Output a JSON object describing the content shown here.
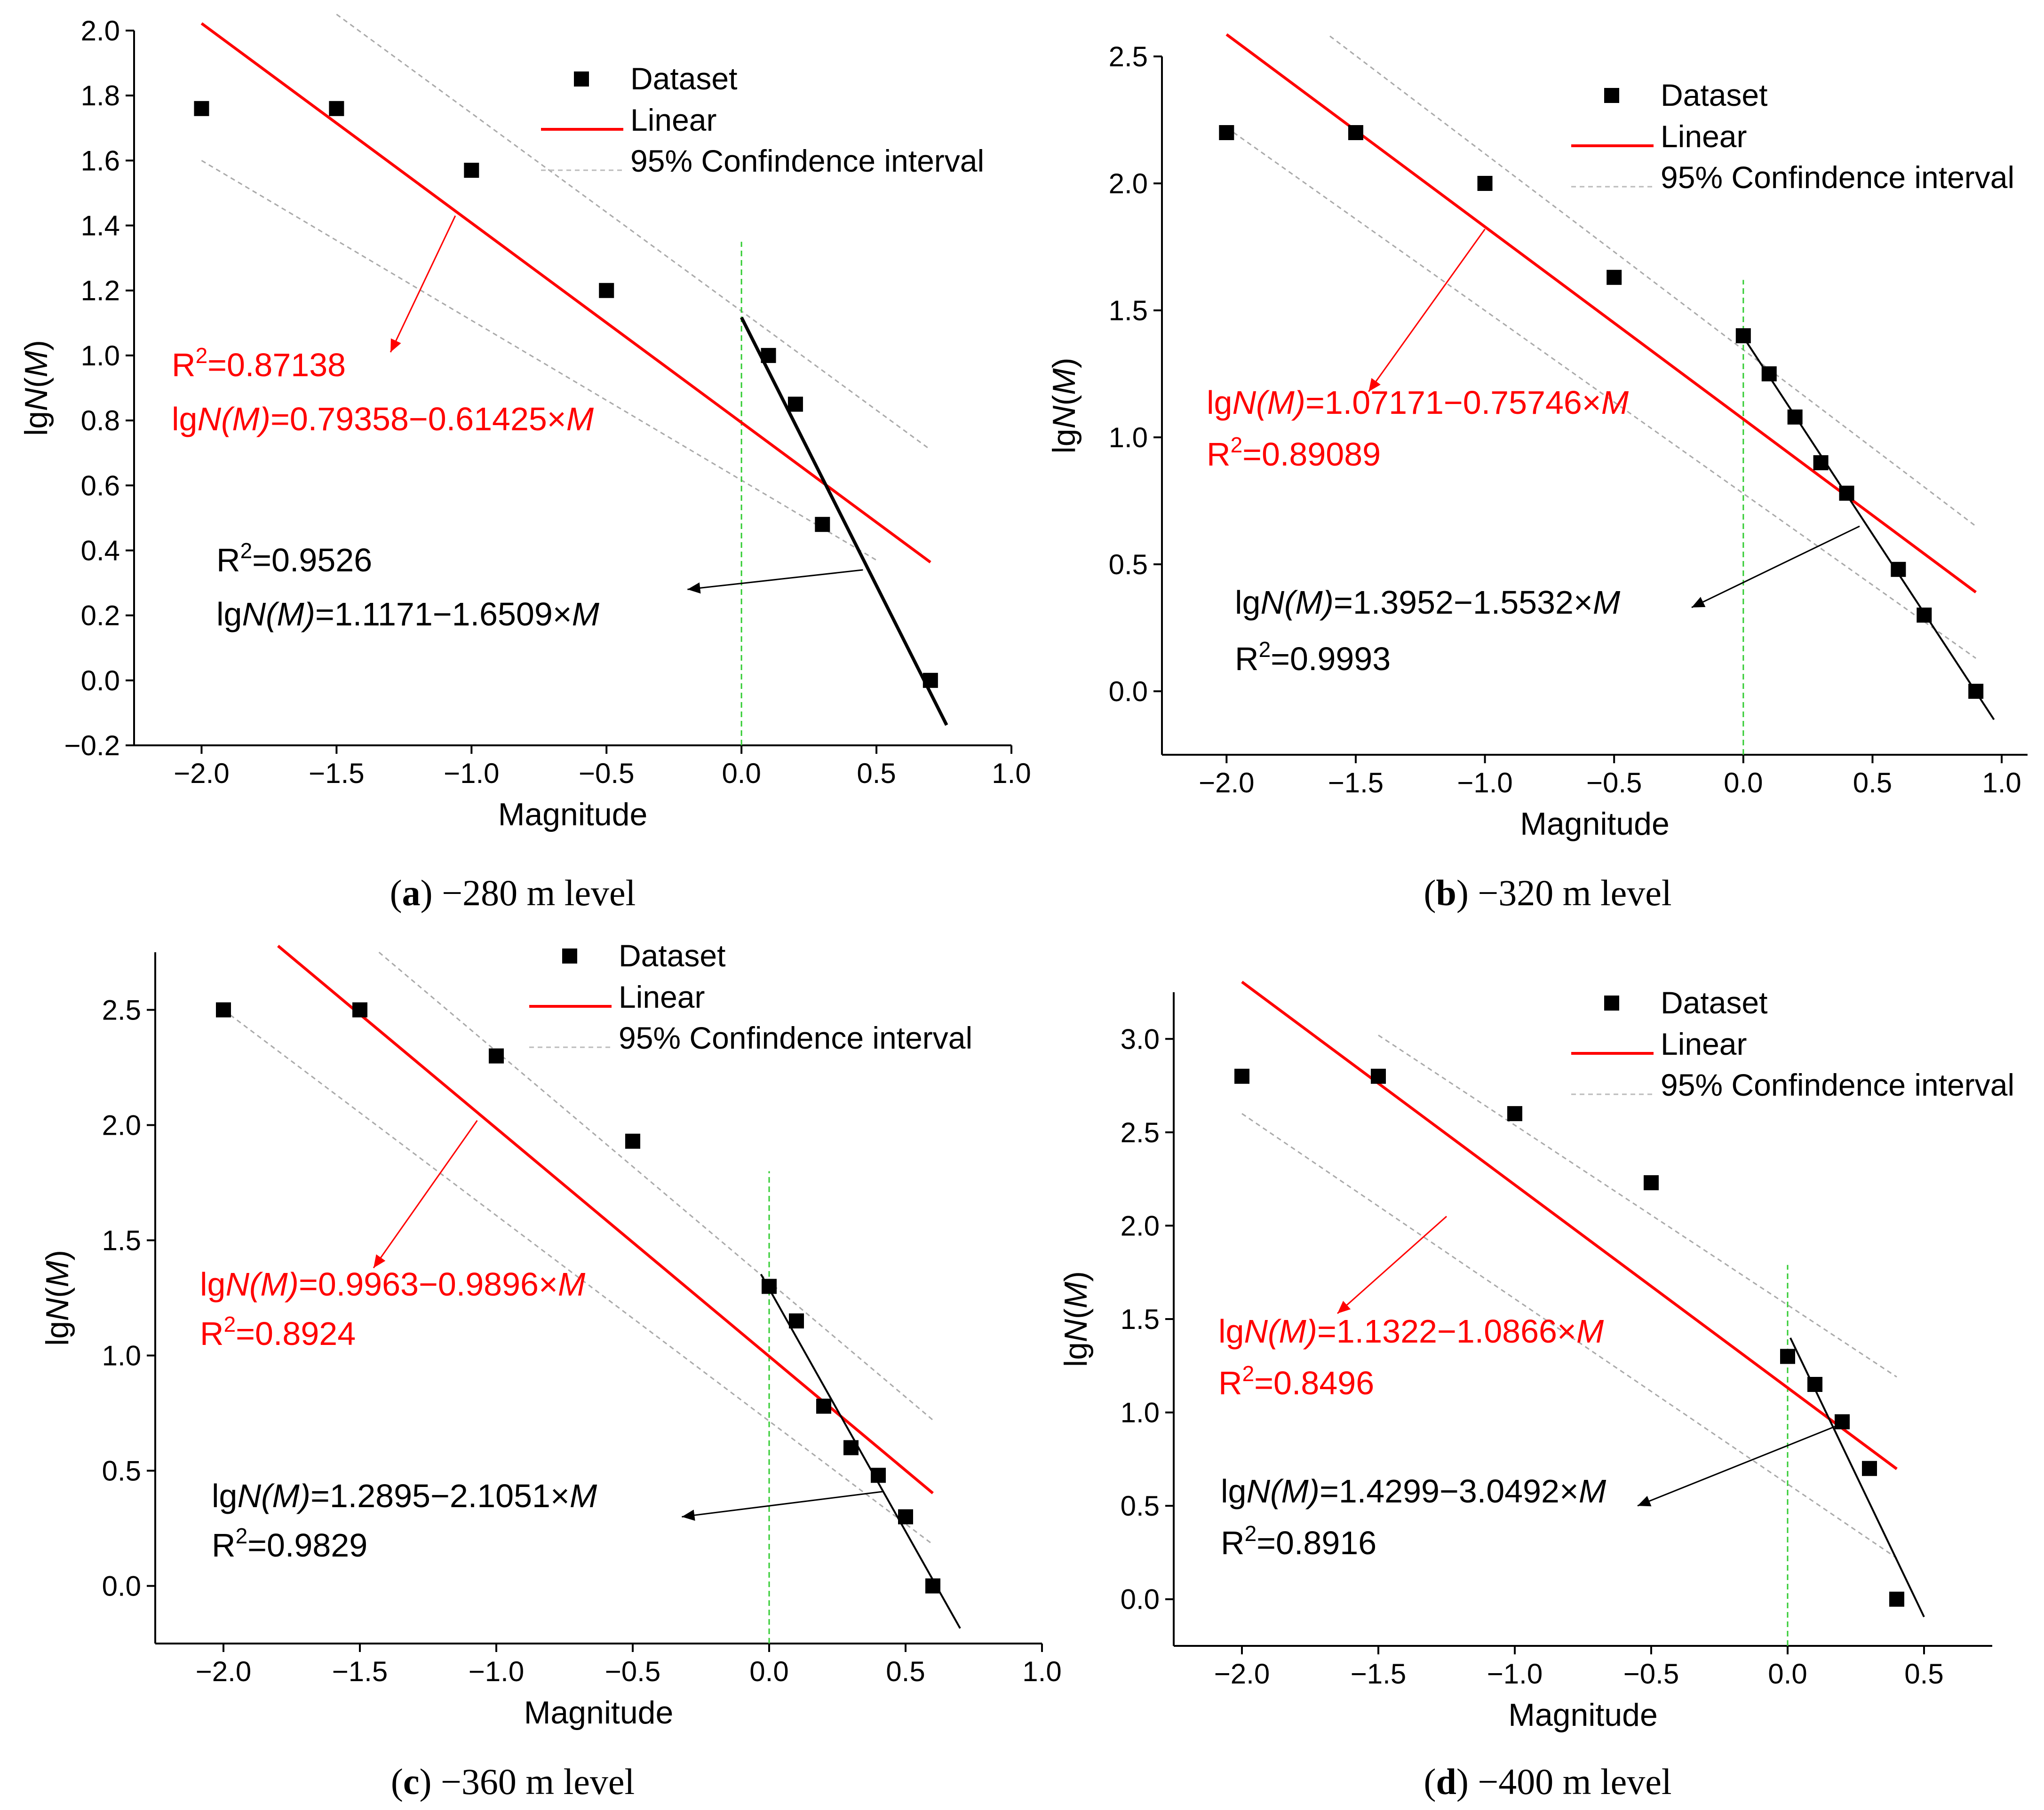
{
  "chart_data": [
    {
      "type": "scatter",
      "caption_letter": "a",
      "caption_rest": " −280 m level",
      "xlabel": "Magnitude",
      "ylabel_prefix": "lg",
      "ylabel_italic": "N",
      "ylabel_paren_open": "(",
      "ylabel_paren_var": "M",
      "ylabel_paren_close": ")",
      "xlim": [
        -2.25,
        1.0
      ],
      "ylim": [
        -0.2,
        2.0
      ],
      "xticks": [
        -2.0,
        -1.5,
        -1.0,
        -0.5,
        0.0,
        0.5,
        1.0
      ],
      "yticks": [
        -0.2,
        0.0,
        0.2,
        0.4,
        0.6,
        0.8,
        1.0,
        1.2,
        1.4,
        1.6,
        1.8,
        2.0
      ],
      "tick_decimals": 1,
      "legend": {
        "dataset": "Dataset",
        "linear": "Linear",
        "ci": "95% Confindence interval"
      },
      "points": [
        [
          -2.0,
          1.76
        ],
        [
          -1.5,
          1.76
        ],
        [
          -1.0,
          1.57
        ],
        [
          -0.5,
          1.2
        ],
        [
          0.1,
          1.0
        ],
        [
          0.2,
          0.85
        ],
        [
          0.3,
          0.48
        ],
        [
          0.7,
          0.0
        ]
      ],
      "linear_fit": {
        "intercept": 0.79358,
        "slope": -0.61425,
        "x_range": [
          -2.0,
          0.7
        ]
      },
      "local_fit": {
        "intercept": 1.1171,
        "slope": -1.6509,
        "x_range": [
          0.0,
          0.76
        ]
      },
      "ci_upper": [
        [
          -1.5,
          2.05
        ],
        [
          0.7,
          0.71
        ]
      ],
      "ci_lower": [
        [
          -2.0,
          1.6
        ],
        [
          0.5,
          0.37
        ]
      ],
      "vline_x": 0.0,
      "vline_y": [
        -0.2,
        1.35
      ],
      "red_equation": "lgN(M)=0.79358−0.61425×M",
      "red_r2": "R²=0.87138",
      "black_equation": "lgN(M)=1.1171−1.6509×M",
      "black_r2": "R²=0.9526",
      "red_arrow": [
        [
          -1.06,
          1.43
        ],
        [
          -1.3,
          1.01
        ]
      ],
      "black_arrow": [
        [
          0.45,
          0.34
        ],
        [
          -0.2,
          0.28
        ]
      ]
    },
    {
      "type": "scatter",
      "caption_letter": "b",
      "caption_rest": " −320 m level",
      "xlabel": "Magnitude",
      "ylabel_prefix": "lg",
      "ylabel_italic": "N",
      "ylabel_paren_open": "(",
      "ylabel_paren_var": "M",
      "ylabel_paren_close": ")",
      "xlim": [
        -2.25,
        1.1
      ],
      "ylim": [
        -0.25,
        2.5
      ],
      "xticks": [
        -2.0,
        -1.5,
        -1.0,
        -0.5,
        0.0,
        0.5,
        1.0
      ],
      "yticks": [
        0.0,
        0.5,
        1.0,
        1.5,
        2.0,
        2.5
      ],
      "tick_decimals": 1,
      "legend": {
        "dataset": "Dataset",
        "linear": "Linear",
        "ci": "95% Confindence interval"
      },
      "points": [
        [
          -2.0,
          2.2
        ],
        [
          -1.5,
          2.2
        ],
        [
          -1.0,
          2.0
        ],
        [
          -0.5,
          1.63
        ],
        [
          0.0,
          1.4
        ],
        [
          0.1,
          1.25
        ],
        [
          0.2,
          1.08
        ],
        [
          0.3,
          0.9
        ],
        [
          0.4,
          0.78
        ],
        [
          0.6,
          0.48
        ],
        [
          0.7,
          0.3
        ],
        [
          0.9,
          0.0
        ]
      ],
      "linear_fit": {
        "intercept": 1.07171,
        "slope": -0.75746,
        "x_range": [
          -2.0,
          0.9
        ]
      },
      "local_fit": {
        "intercept": 1.3952,
        "slope": -1.5532,
        "x_range": [
          0.0,
          0.97
        ]
      },
      "ci_upper": [
        [
          -1.6,
          2.58
        ],
        [
          0.9,
          0.65
        ]
      ],
      "ci_lower": [
        [
          -2.0,
          2.22
        ],
        [
          0.9,
          0.13
        ]
      ],
      "vline_x": 0.0,
      "vline_y": [
        -0.25,
        1.62
      ],
      "red_equation": "lgN(M)=1.07171−0.75746×M",
      "red_r2": "R²=0.89089",
      "black_equation": "lgN(M)=1.3952−1.5532×M",
      "black_r2": "R²=0.9993",
      "red_arrow": [
        [
          -1.0,
          1.82
        ],
        [
          -1.45,
          1.18
        ]
      ],
      "black_arrow": [
        [
          0.45,
          0.65
        ],
        [
          -0.2,
          0.33
        ]
      ]
    },
    {
      "type": "scatter",
      "caption_letter": "c",
      "caption_rest": " −360 m level",
      "xlabel": "Magnitude",
      "ylabel_prefix": "lg",
      "ylabel_italic": "N",
      "ylabel_paren_open": "(",
      "ylabel_paren_var": "M",
      "ylabel_paren_close": ")",
      "xlim": [
        -2.25,
        1.0
      ],
      "ylim": [
        -0.25,
        2.75
      ],
      "xticks": [
        -2.0,
        -1.5,
        -1.0,
        -0.5,
        0.0,
        0.5,
        1.0
      ],
      "yticks": [
        0.0,
        0.5,
        1.0,
        1.5,
        2.0,
        2.5
      ],
      "tick_decimals": 1,
      "legend": {
        "dataset": "Dataset",
        "linear": "Linear",
        "ci": "95% Confindence interval"
      },
      "points": [
        [
          -2.0,
          2.5
        ],
        [
          -1.5,
          2.5
        ],
        [
          -1.0,
          2.3
        ],
        [
          -0.5,
          1.93
        ],
        [
          0.0,
          1.3
        ],
        [
          0.1,
          1.15
        ],
        [
          0.2,
          0.78
        ],
        [
          0.3,
          0.6
        ],
        [
          0.4,
          0.48
        ],
        [
          0.5,
          0.3
        ],
        [
          0.6,
          0.0
        ]
      ],
      "linear_fit": {
        "intercept": 0.9963,
        "slope": -0.9896,
        "x_range": [
          -1.8,
          0.6
        ]
      },
      "local_fit": {
        "intercept": 1.2895,
        "slope": -2.1051,
        "x_range": [
          -0.03,
          0.7
        ]
      },
      "ci_upper": [
        [
          -1.43,
          2.75
        ],
        [
          0.6,
          0.72
        ]
      ],
      "ci_lower": [
        [
          -2.0,
          2.5
        ],
        [
          0.6,
          0.18
        ]
      ],
      "vline_x": 0.0,
      "vline_y": [
        -0.25,
        1.8
      ],
      "red_equation": "lgN(M)=0.9963−0.9896×M",
      "red_r2": "R²=0.8924",
      "black_equation": "lgN(M)=1.2895−2.1051×M",
      "black_r2": "R²=0.9829",
      "red_arrow": [
        [
          -1.07,
          2.02
        ],
        [
          -1.45,
          1.38
        ]
      ],
      "black_arrow": [
        [
          0.42,
          0.41
        ],
        [
          -0.32,
          0.3
        ]
      ]
    },
    {
      "type": "scatter",
      "caption_letter": "d",
      "caption_rest": " −400 m level",
      "xlabel": "Magnitude",
      "ylabel_prefix": "lg",
      "ylabel_italic": "N",
      "ylabel_paren_open": "(",
      "ylabel_paren_var": "M",
      "ylabel_paren_close": ")",
      "xlim": [
        -2.25,
        0.75
      ],
      "ylim": [
        -0.25,
        3.25
      ],
      "xticks": [
        -2.0,
        -1.5,
        -1.0,
        -0.5,
        0.0,
        0.5
      ],
      "yticks": [
        0.0,
        0.5,
        1.0,
        1.5,
        2.0,
        2.5,
        3.0
      ],
      "tick_decimals": 1,
      "legend": {
        "dataset": "Dataset",
        "linear": "Linear",
        "ci": "95% Confindence interval"
      },
      "points": [
        [
          -2.0,
          2.8
        ],
        [
          -1.5,
          2.8
        ],
        [
          -1.0,
          2.6
        ],
        [
          -0.5,
          2.23
        ],
        [
          0.0,
          1.3
        ],
        [
          0.1,
          1.15
        ],
        [
          0.2,
          0.95
        ],
        [
          0.3,
          0.7
        ],
        [
          0.4,
          0.0
        ]
      ],
      "linear_fit": {
        "intercept": 1.1322,
        "slope": -1.0866,
        "x_range": [
          -2.0,
          0.4
        ]
      },
      "local_fit": {
        "intercept": 1.4299,
        "slope": -3.0492,
        "x_range": [
          0.01,
          0.5
        ]
      },
      "ci_upper": [
        [
          -1.5,
          3.02
        ],
        [
          0.4,
          1.19
        ]
      ],
      "ci_lower": [
        [
          -2.0,
          2.6
        ],
        [
          0.4,
          0.22
        ]
      ],
      "vline_x": 0.0,
      "vline_y": [
        -0.25,
        1.79
      ],
      "red_equation": "lgN(M)=1.1322−1.0866×M",
      "red_r2": "R²=0.8496",
      "black_equation": "lgN(M)=1.4299−3.0492×M",
      "black_r2": "R²=0.8916",
      "red_arrow": [
        [
          -1.25,
          2.05
        ],
        [
          -1.65,
          1.53
        ]
      ],
      "black_arrow": [
        [
          0.2,
          0.94
        ],
        [
          -0.55,
          0.5
        ]
      ]
    }
  ]
}
